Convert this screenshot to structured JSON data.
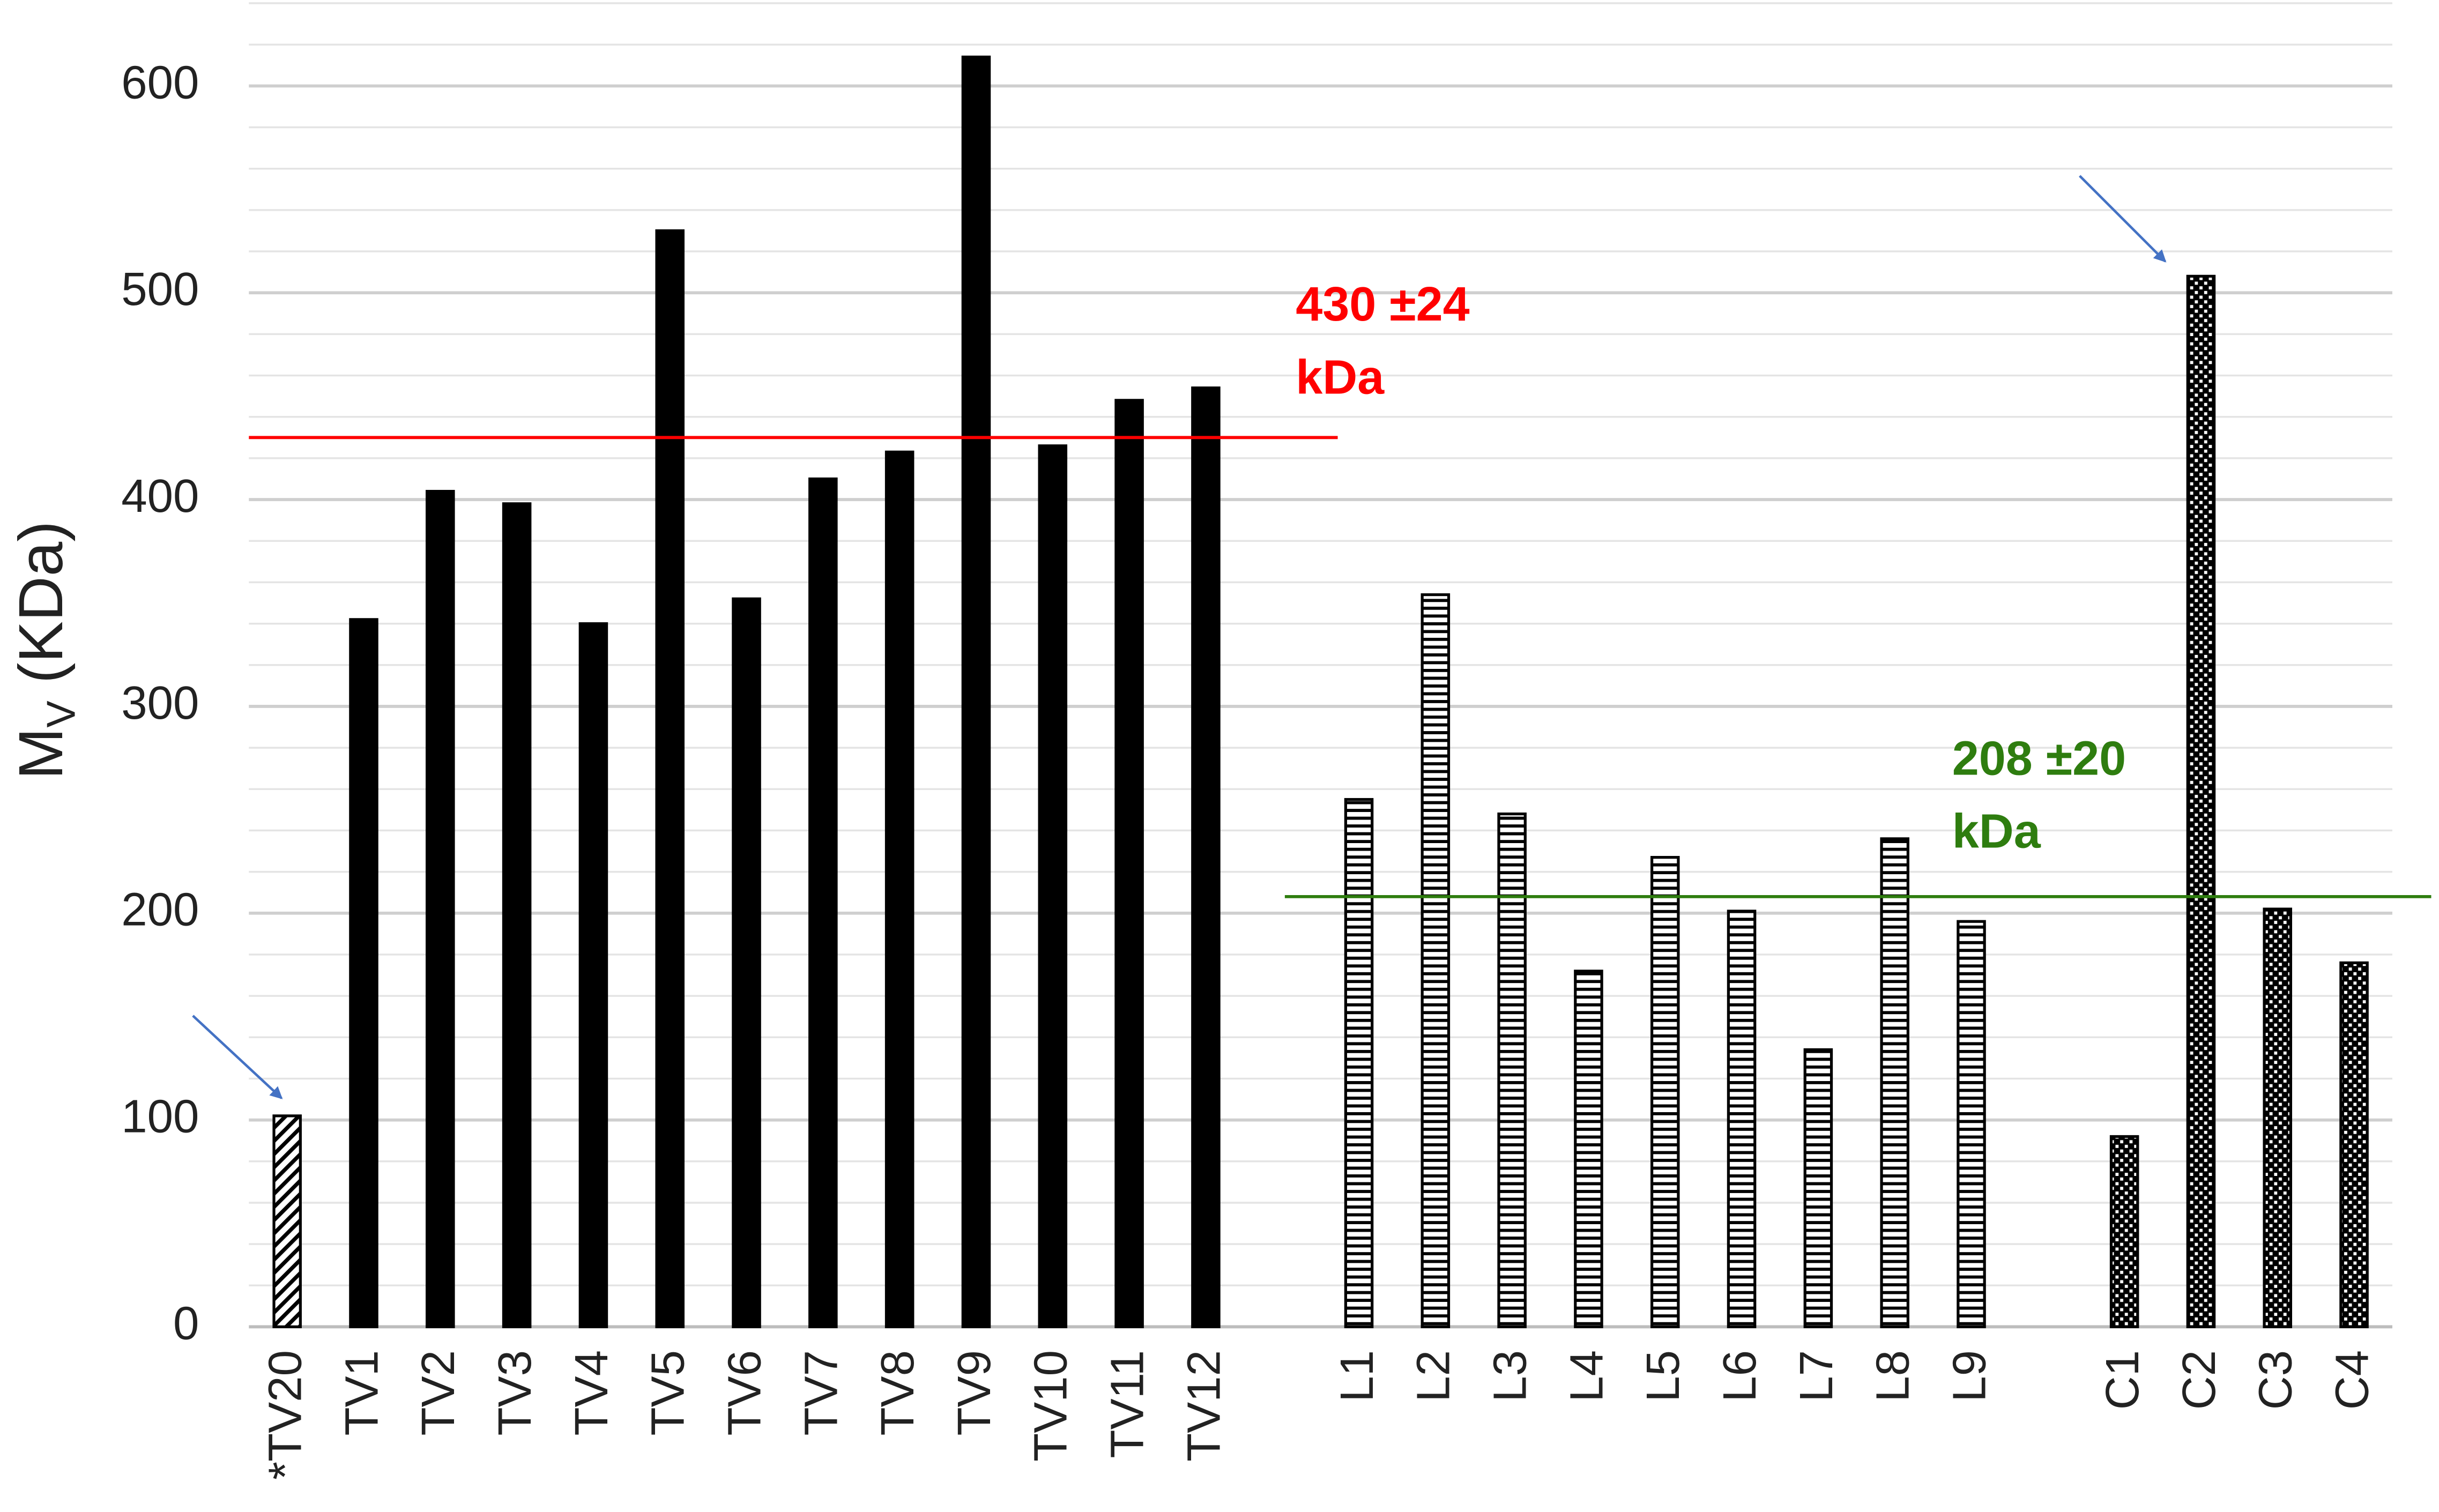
{
  "chart_data": {
    "type": "bar",
    "ylabel": [
      "M",
      "V",
      " (KDa)"
    ],
    "categories": [
      "*TV20",
      "TV1",
      "TV2",
      "TV3",
      "TV4",
      "TV5",
      "TV6",
      "TV7",
      "TV8",
      "TV9",
      "TV10",
      "TV11",
      "TV12",
      null,
      "L1",
      "L2",
      "L3",
      "L4",
      "L5",
      "L6",
      "L7",
      "L8",
      "L9",
      null,
      "C1",
      "C2",
      "C3",
      "C4"
    ],
    "values": [
      102,
      342,
      404,
      398,
      340,
      530,
      352,
      410,
      423,
      614,
      426,
      448,
      454,
      null,
      255,
      354,
      248,
      172,
      227,
      201,
      134,
      236,
      196,
      null,
      92,
      508,
      202,
      176
    ],
    "patterns": [
      "diagonal",
      "solid",
      "solid",
      "solid",
      "solid",
      "solid",
      "solid",
      "solid",
      "solid",
      "solid",
      "solid",
      "solid",
      "solid",
      null,
      "stripes",
      "stripes",
      "stripes",
      "stripes",
      "stripes",
      "stripes",
      "stripes",
      "stripes",
      "stripes",
      null,
      "checker",
      "checker",
      "checker",
      "checker"
    ],
    "color": "#000000",
    "ylim": [
      0,
      640
    ],
    "yticks": [
      0,
      100,
      200,
      300,
      400,
      500,
      600
    ],
    "grid": true,
    "minor_grid_step": 20,
    "reference_lines": [
      {
        "value": 430,
        "color": "#ff0000",
        "label": [
          "430 ±24",
          "kDa"
        ]
      },
      {
        "value": 208,
        "color": "#2e7d0f",
        "label": [
          "208 ±20",
          "kDa"
        ]
      }
    ]
  }
}
